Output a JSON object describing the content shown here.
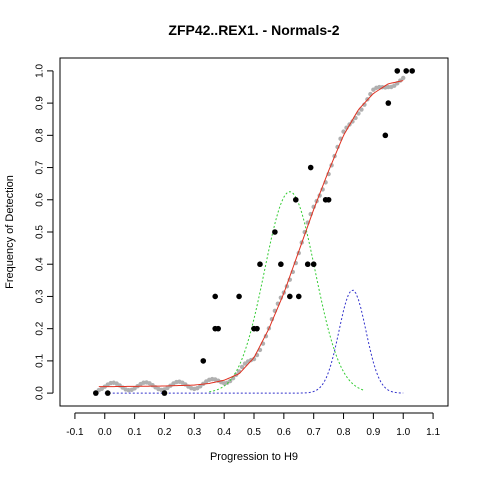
{
  "chart_data": {
    "type": "scatter",
    "title": "ZFP42..REX1. - Normals-2",
    "xlabel": "Progression to H9",
    "ylabel": "Frequency of Detection",
    "xlim": [
      -0.15,
      1.15
    ],
    "ylim": [
      -0.04,
      1.04
    ],
    "x_ticks": [
      -0.1,
      0.0,
      0.1,
      0.2,
      0.3,
      0.4,
      0.5,
      0.6,
      0.7,
      0.8,
      0.9,
      1.0,
      1.1
    ],
    "x_tick_labels": [
      "-0.1",
      "0.0",
      "0.1",
      "0.2",
      "0.3",
      "0.4",
      "0.5",
      "0.6",
      "0.7",
      "0.8",
      "0.9",
      "1.0",
      "1.1"
    ],
    "y_ticks": [
      0.0,
      0.1,
      0.2,
      0.3,
      0.4,
      0.5,
      0.6,
      0.7,
      0.8,
      0.9,
      1.0
    ],
    "y_tick_labels": [
      "0.0",
      "0.1",
      "0.2",
      "0.3",
      "0.4",
      "0.5",
      "0.6",
      "0.7",
      "0.8",
      "0.9",
      "1.0"
    ],
    "grid": false,
    "colors": {
      "observed": "#000000",
      "smoothed": "#b0b0b0",
      "fit": "#e03020",
      "green_density": "#33cc33",
      "blue_density": "#3333cc"
    },
    "series": [
      {
        "kind": "observed",
        "points": [
          [
            -0.03,
            0.0
          ],
          [
            0.01,
            0.0
          ],
          [
            0.2,
            0.0
          ],
          [
            0.33,
            0.1
          ],
          [
            0.37,
            0.3
          ],
          [
            0.37,
            0.2
          ],
          [
            0.38,
            0.2
          ],
          [
            0.45,
            0.3
          ],
          [
            0.5,
            0.2
          ],
          [
            0.51,
            0.2
          ],
          [
            0.52,
            0.4
          ],
          [
            0.57,
            0.5
          ],
          [
            0.59,
            0.4
          ],
          [
            0.62,
            0.3
          ],
          [
            0.64,
            0.6
          ],
          [
            0.65,
            0.3
          ],
          [
            0.68,
            0.4
          ],
          [
            0.69,
            0.7
          ],
          [
            0.7,
            0.4
          ],
          [
            0.74,
            0.6
          ],
          [
            0.75,
            0.6
          ],
          [
            0.94,
            0.8
          ],
          [
            0.95,
            0.9
          ],
          [
            0.98,
            1.0
          ],
          [
            1.01,
            1.0
          ],
          [
            1.03,
            1.0
          ]
        ]
      },
      {
        "kind": "smoothed",
        "x_start": -0.02,
        "x_end": 1.0,
        "x_step": 0.01
      },
      {
        "kind": "fit",
        "x": [
          -0.02,
          0.0,
          0.1,
          0.2,
          0.3,
          0.35,
          0.4,
          0.45,
          0.5,
          0.55,
          0.6,
          0.65,
          0.7,
          0.75,
          0.8,
          0.85,
          0.9,
          0.95,
          1.0
        ],
        "y": [
          0.02,
          0.02,
          0.021,
          0.022,
          0.025,
          0.03,
          0.04,
          0.06,
          0.11,
          0.2,
          0.31,
          0.44,
          0.57,
          0.69,
          0.8,
          0.88,
          0.93,
          0.96,
          0.97
        ]
      },
      {
        "kind": "green_density",
        "mean": 0.62,
        "sd": 0.085,
        "peak": 0.625,
        "x_start": 0.35,
        "x_end": 0.87
      },
      {
        "kind": "blue_density",
        "mean": 0.83,
        "sd": 0.045,
        "peak": 0.32,
        "x_start": 0.0,
        "x_end": 1.0
      }
    ]
  }
}
